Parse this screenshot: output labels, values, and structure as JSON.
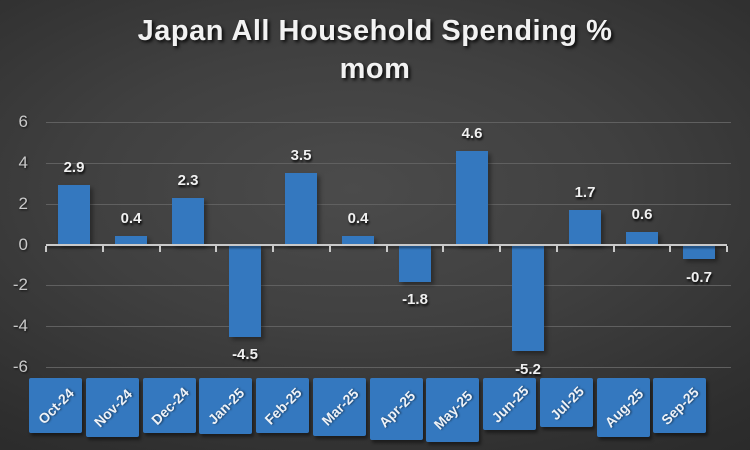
{
  "slide": {
    "title_line1": "Japan All Household Spending %",
    "title_line2": "mom"
  },
  "chart_data": {
    "type": "bar",
    "title": "Japan All Household Spending % mom",
    "categories": [
      "Oct-24",
      "Nov-24",
      "Dec-24",
      "Jan-25",
      "Feb-25",
      "Mar-25",
      "Apr-25",
      "May-25",
      "Jun-25",
      "Jul-25",
      "Aug-25",
      "Sep-25"
    ],
    "values": [
      2.9,
      0.4,
      2.3,
      -4.5,
      3.5,
      0.4,
      -1.8,
      4.6,
      -5.2,
      1.7,
      0.6,
      -0.7
    ],
    "xlabel": "",
    "ylabel": "",
    "ylim": [
      -6,
      6
    ],
    "yticks": [
      6,
      4,
      2,
      0,
      -2,
      -4,
      -6
    ],
    "grid": true,
    "legend": false,
    "data_labels": true,
    "colors": {
      "bar": "#3478bf",
      "axis": "#c9c9c9",
      "gridline": "#606060",
      "tick_label": "#c9c9c9",
      "data_label": "#f0f0f0",
      "title": "#f2f2f2",
      "background_center": "#4b4b4b",
      "background_edge": "#212121"
    }
  }
}
